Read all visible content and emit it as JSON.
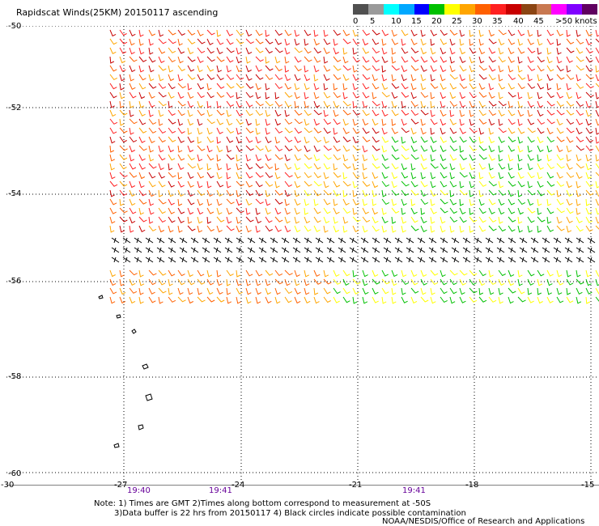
{
  "title": "Rapidscat Winds(25KM) 20150117 ascending",
  "legend": {
    "colors": [
      "#505050",
      "#9a9a9a",
      "#00ffff",
      "#00a8ff",
      "#0000ff",
      "#00c000",
      "#ffff00",
      "#ffa500",
      "#ff6000",
      "#ff2020",
      "#c80000",
      "#8b4513",
      "#c87850",
      "#ff00ff",
      "#8000ff",
      "#600060"
    ],
    "labels": [
      "0",
      "5",
      "10",
      "15",
      "20",
      "25",
      "30",
      "35",
      "40",
      "45",
      ">50 knots"
    ]
  },
  "axes": {
    "x_ticks": [
      "-30",
      "-27",
      "-24",
      "-21",
      "-18",
      "-15"
    ],
    "y_ticks": [
      "-50",
      "-52",
      "-54",
      "-56",
      "-58",
      "-60"
    ]
  },
  "times": [
    "19:40",
    "19:41",
    "19:41"
  ],
  "notes": {
    "line1": "Note: 1) Times are GMT 2)Times along bottom correspond to measurement at -50S",
    "line2": "3)Data buffer is 22 hrs from 20150117 4) Black circles indicate possible contamination",
    "line3": "NOAA/NESDIS/Office of Research and Applications"
  }
}
